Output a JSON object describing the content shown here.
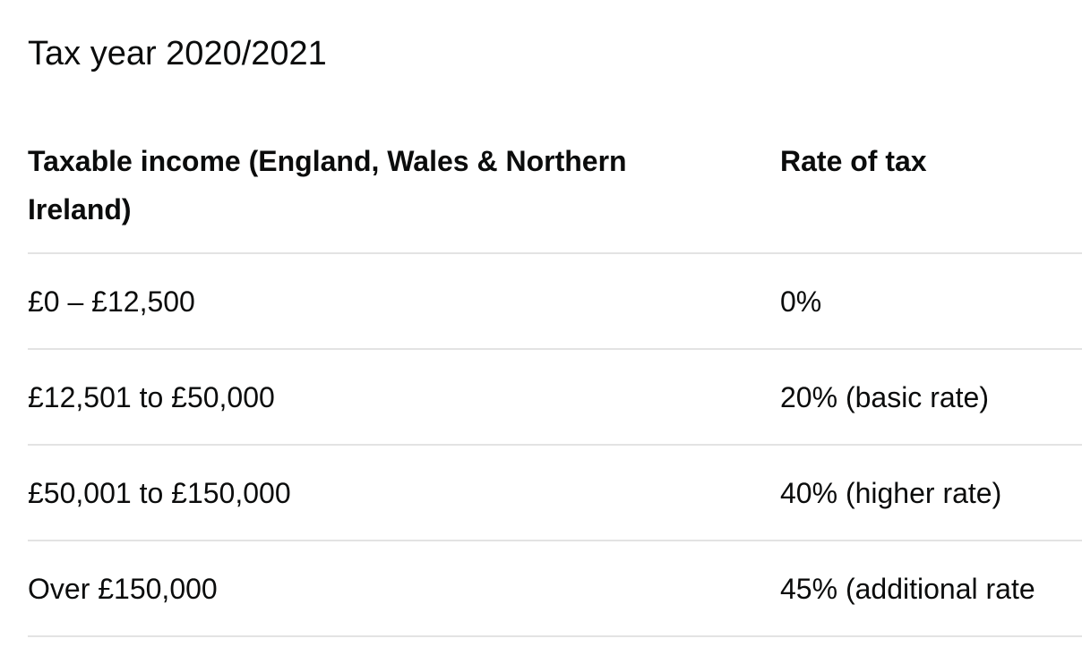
{
  "caption": "Tax year 2020/2021",
  "table": {
    "headers": [
      "Taxable income (England, Wales & Northern Ireland)",
      "Rate of tax"
    ],
    "rows": [
      [
        "£0 – £12,500",
        "0%"
      ],
      [
        "£12,501 to £50,000",
        "20% (basic rate)"
      ],
      [
        "£50,001 to £150,000",
        "40% (higher rate)"
      ],
      [
        "Over £150,000",
        "45% (additional rate"
      ]
    ]
  }
}
